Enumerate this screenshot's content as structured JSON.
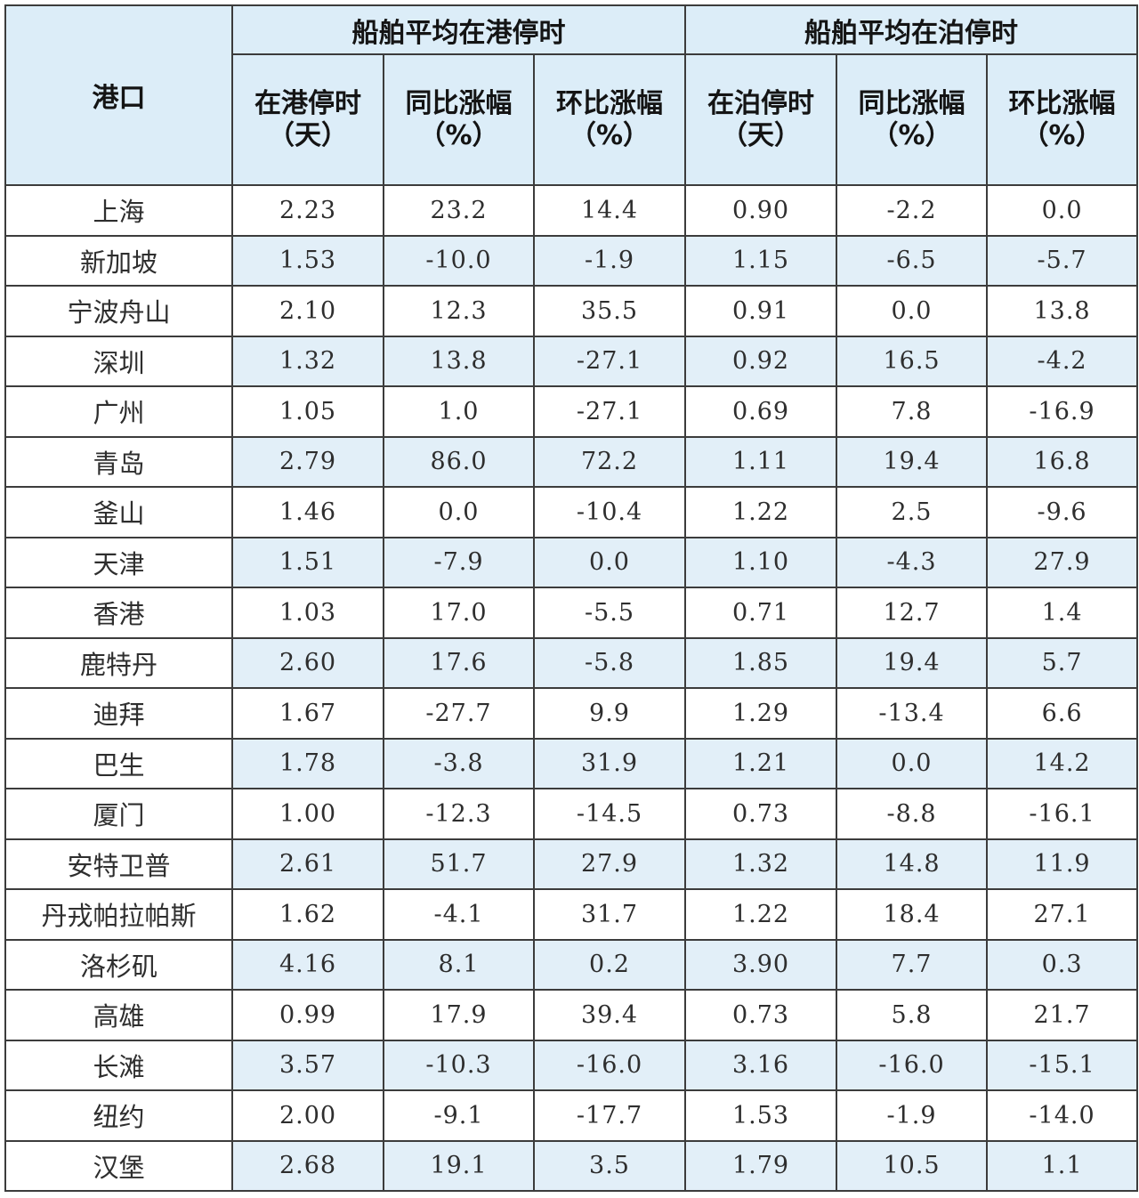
{
  "table": {
    "port_header": "港口",
    "groups": [
      {
        "label": "船舶平均在港停时"
      },
      {
        "label": "船舶平均在泊停时"
      }
    ],
    "columns": [
      {
        "line1": "在港停时",
        "line2": "（天）"
      },
      {
        "line1": "同比涨幅",
        "line2": "（%）"
      },
      {
        "line1": "环比涨幅",
        "line2": "（%）"
      },
      {
        "line1": "在泊停时",
        "line2": "（天）"
      },
      {
        "line1": "同比涨幅",
        "line2": "（%）"
      },
      {
        "line1": "环比涨幅",
        "line2": "（%）"
      }
    ],
    "rows": [
      {
        "port": "上海",
        "values": [
          "2.23",
          "23.2",
          "14.4",
          "0.90",
          "-2.2",
          "0.0"
        ]
      },
      {
        "port": "新加坡",
        "values": [
          "1.53",
          "-10.0",
          "-1.9",
          "1.15",
          "-6.5",
          "-5.7"
        ]
      },
      {
        "port": "宁波舟山",
        "values": [
          "2.10",
          "12.3",
          "35.5",
          "0.91",
          "0.0",
          "13.8"
        ]
      },
      {
        "port": "深圳",
        "values": [
          "1.32",
          "13.8",
          "-27.1",
          "0.92",
          "16.5",
          "-4.2"
        ]
      },
      {
        "port": "广州",
        "values": [
          "1.05",
          "1.0",
          "-27.1",
          "0.69",
          "7.8",
          "-16.9"
        ]
      },
      {
        "port": "青岛",
        "values": [
          "2.79",
          "86.0",
          "72.2",
          "1.11",
          "19.4",
          "16.8"
        ]
      },
      {
        "port": "釜山",
        "values": [
          "1.46",
          "0.0",
          "-10.4",
          "1.22",
          "2.5",
          "-9.6"
        ]
      },
      {
        "port": "天津",
        "values": [
          "1.51",
          "-7.9",
          "0.0",
          "1.10",
          "-4.3",
          "27.9"
        ]
      },
      {
        "port": "香港",
        "values": [
          "1.03",
          "17.0",
          "-5.5",
          "0.71",
          "12.7",
          "1.4"
        ]
      },
      {
        "port": "鹿特丹",
        "values": [
          "2.60",
          "17.6",
          "-5.8",
          "1.85",
          "19.4",
          "5.7"
        ]
      },
      {
        "port": "迪拜",
        "values": [
          "1.67",
          "-27.7",
          "9.9",
          "1.29",
          "-13.4",
          "6.6"
        ]
      },
      {
        "port": "巴生",
        "values": [
          "1.78",
          "-3.8",
          "31.9",
          "1.21",
          "0.0",
          "14.2"
        ]
      },
      {
        "port": "厦门",
        "values": [
          "1.00",
          "-12.3",
          "-14.5",
          "0.73",
          "-8.8",
          "-16.1"
        ]
      },
      {
        "port": "安特卫普",
        "values": [
          "2.61",
          "51.7",
          "27.9",
          "1.32",
          "14.8",
          "11.9"
        ]
      },
      {
        "port": "丹戎帕拉帕斯",
        "values": [
          "1.62",
          "-4.1",
          "31.7",
          "1.22",
          "18.4",
          "27.1"
        ]
      },
      {
        "port": "洛杉矶",
        "values": [
          "4.16",
          "8.1",
          "0.2",
          "3.90",
          "7.7",
          "0.3"
        ]
      },
      {
        "port": "高雄",
        "values": [
          "0.99",
          "17.9",
          "39.4",
          "0.73",
          "5.8",
          "21.7"
        ]
      },
      {
        "port": "长滩",
        "values": [
          "3.57",
          "-10.3",
          "-16.0",
          "3.16",
          "-16.0",
          "-15.1"
        ]
      },
      {
        "port": "纽约",
        "values": [
          "2.00",
          "-9.1",
          "-17.7",
          "1.53",
          "-1.9",
          "-14.0"
        ]
      },
      {
        "port": "汉堡",
        "values": [
          "2.68",
          "19.1",
          "3.5",
          "1.79",
          "10.5",
          "1.1"
        ]
      }
    ]
  },
  "colors": {
    "header_bg": "#dcedf8",
    "band_bg": "#e2eff8",
    "border": "#3c3c3c"
  }
}
